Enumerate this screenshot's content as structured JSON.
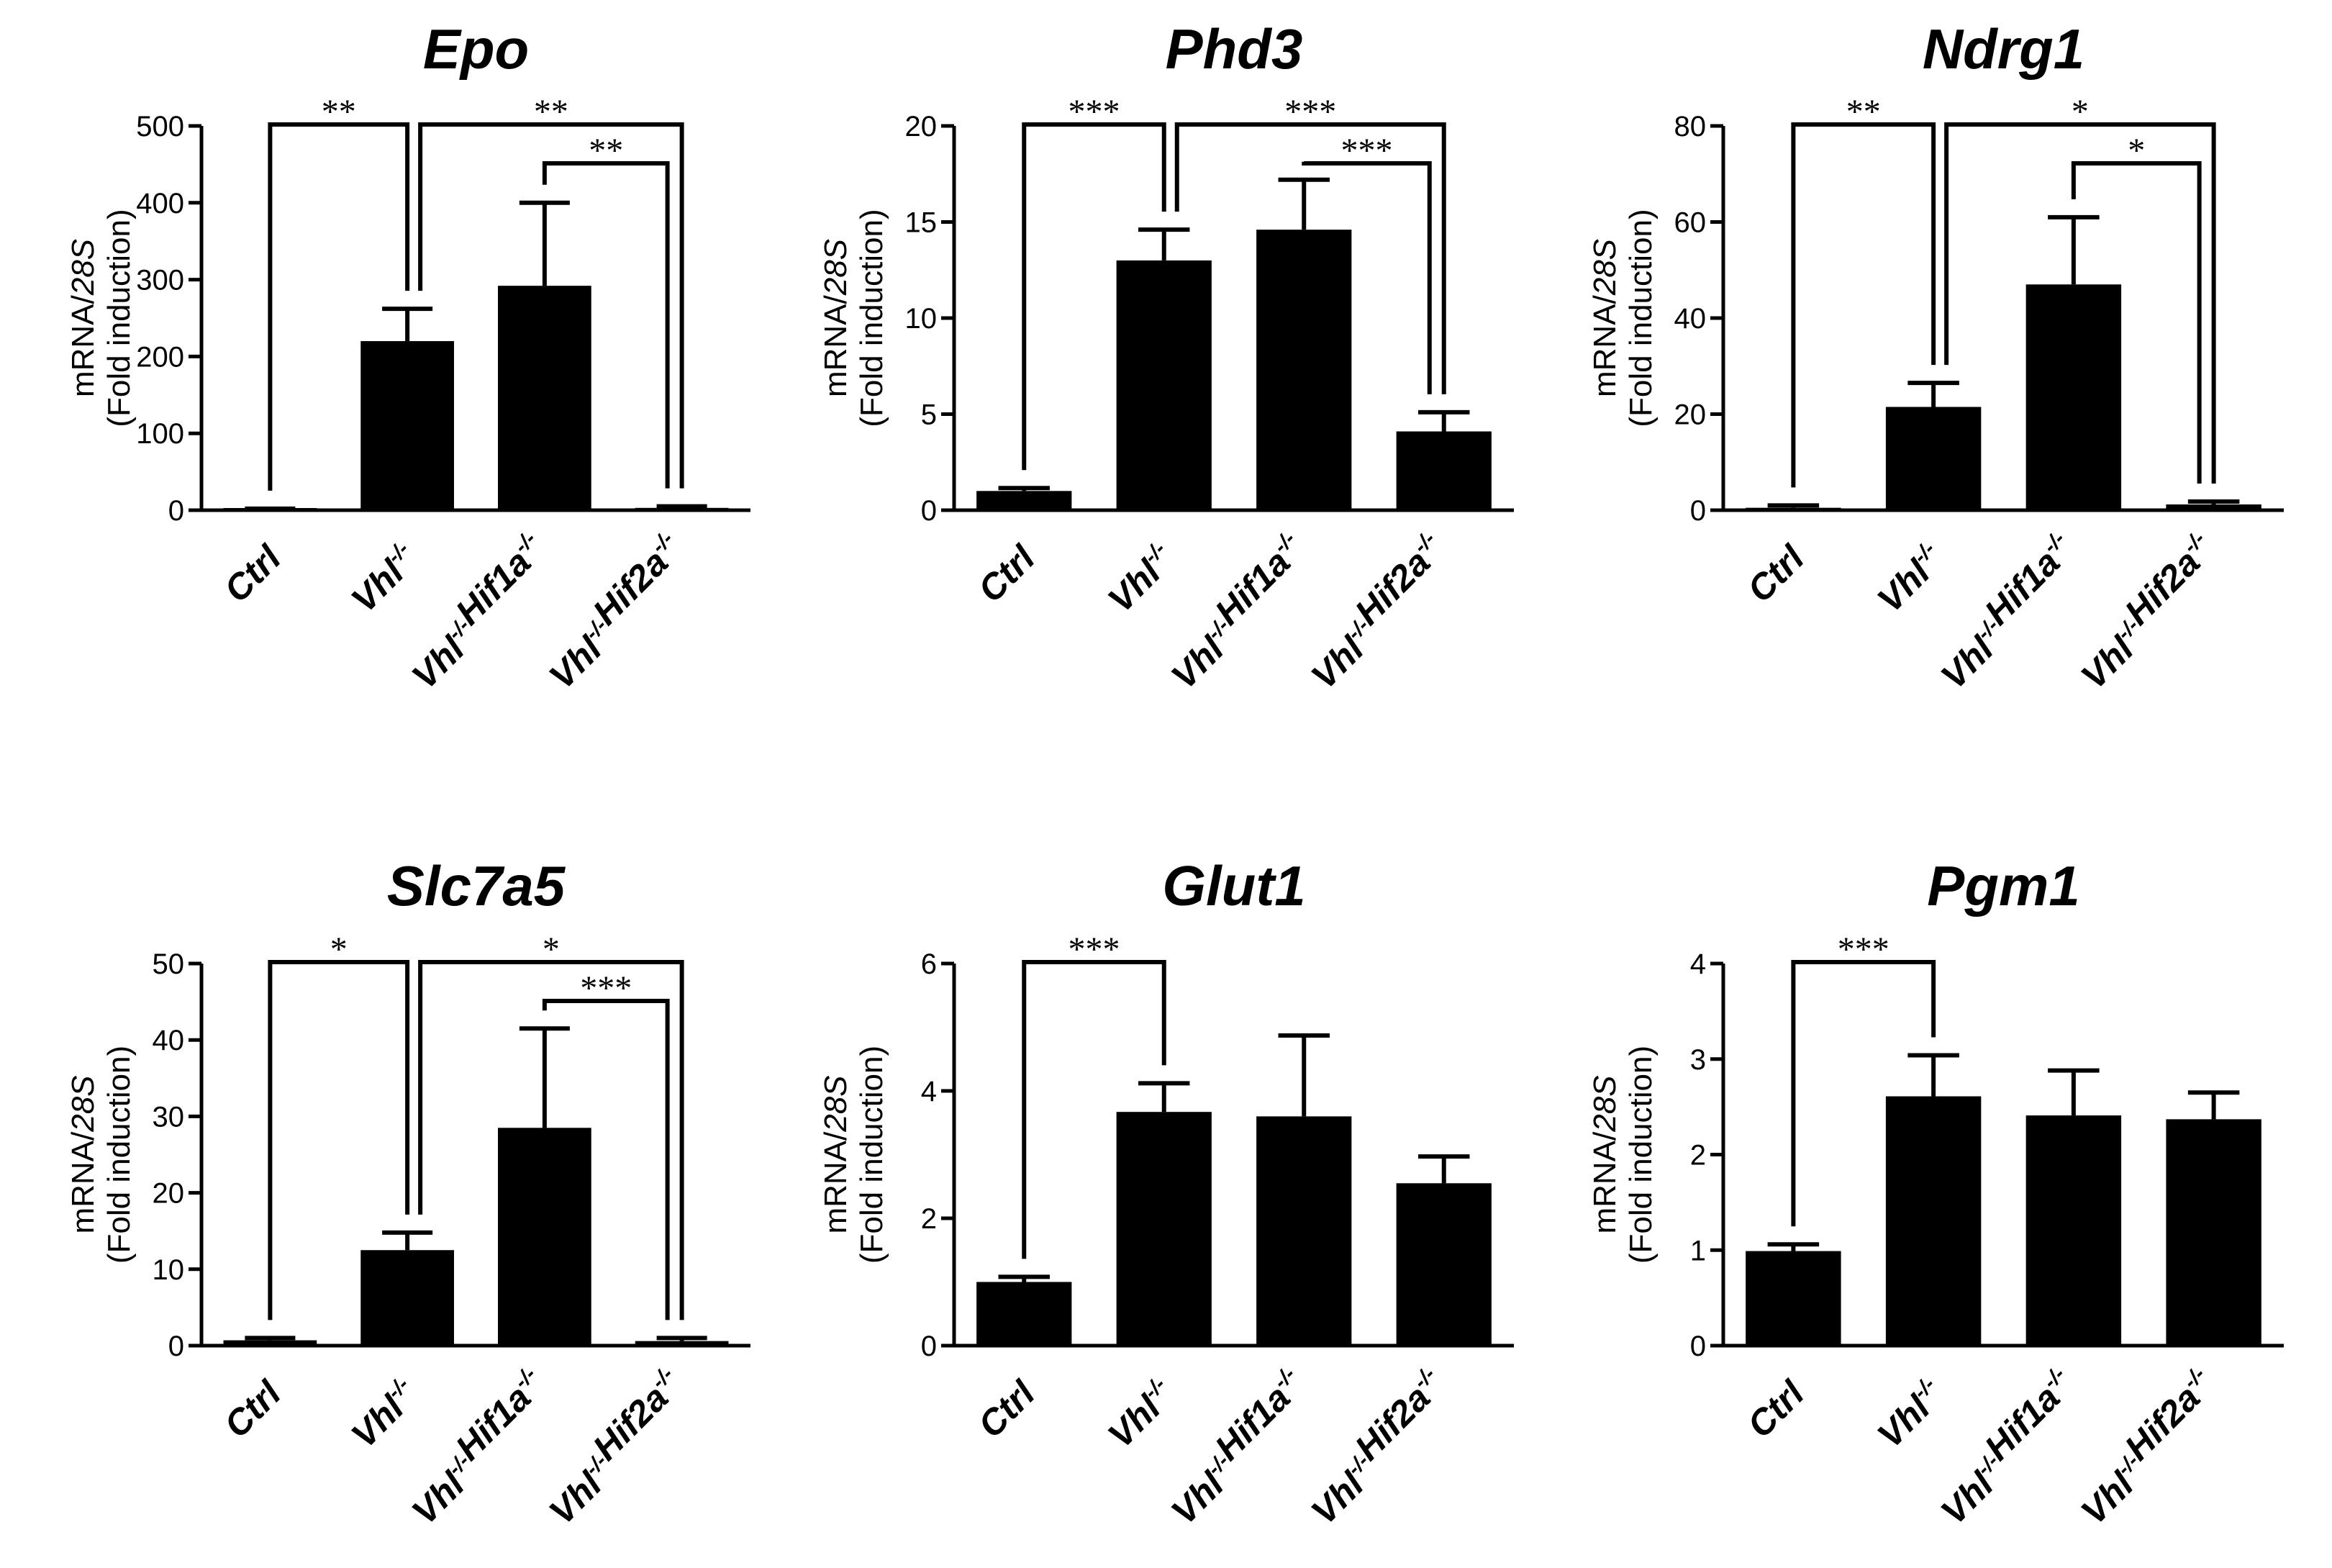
{
  "figure": {
    "panels": 6,
    "layout": "2 rows x 3 columns"
  },
  "colors": {
    "bar": "#000000",
    "axis": "#000000",
    "background": "#ffffff"
  },
  "chart_data": [
    {
      "type": "bar",
      "title": "Epo",
      "ylabel": "mRNA/28S",
      "ylabel_parts": [
        "mRNA/",
        "28S"
      ],
      "ylabel2": "(Fold induction)",
      "ylim": [
        0,
        500
      ],
      "yticks": [
        "0",
        "100",
        "200",
        "300",
        "400",
        "500"
      ],
      "categories": [
        {
          "main": "Ctrl",
          "parts": [
            [
              "Ctrl",
              ""
            ]
          ]
        },
        {
          "main": "Vhl-/-",
          "parts": [
            [
              "Vhl",
              "-/-"
            ]
          ]
        },
        {
          "main": "Vhl-/-Hif1a-/-",
          "parts": [
            [
              "Vhl",
              "-/-"
            ],
            [
              "Hif1a",
              "-/-"
            ]
          ]
        },
        {
          "main": "Vhl-/-Hif2a-/-",
          "parts": [
            [
              "Vhl",
              "-/-"
            ],
            [
              "Hif2a",
              "-/-"
            ]
          ]
        }
      ],
      "values": [
        1,
        220,
        292,
        3
      ],
      "errors": [
        1,
        42,
        108,
        2
      ],
      "significance": [
        {
          "from": 0,
          "to": 1,
          "label": "**",
          "level": 0
        },
        {
          "from": 1,
          "to": 3,
          "label": "**",
          "level": 0
        },
        {
          "from": 2,
          "to": 3,
          "label": "**",
          "level": 1
        }
      ]
    },
    {
      "type": "bar",
      "title": "Phd3",
      "ylabel": "mRNA/28S",
      "ylabel_parts": [
        "mRNA/",
        "28S"
      ],
      "ylabel2": "(Fold induction)",
      "ylim": [
        0,
        20
      ],
      "yticks": [
        "0",
        "5",
        "10",
        "15",
        "20"
      ],
      "categories": [
        {
          "main": "Ctrl",
          "parts": [
            [
              "Ctrl",
              ""
            ]
          ]
        },
        {
          "main": "Vhl-/-",
          "parts": [
            [
              "Vhl",
              "-/-"
            ]
          ]
        },
        {
          "main": "Vhl-/-Hif1a-/-",
          "parts": [
            [
              "Vhl",
              "-/-"
            ],
            [
              "Hif1a",
              "-/-"
            ]
          ]
        },
        {
          "main": "Vhl-/-Hif2a-/-",
          "parts": [
            [
              "Vhl",
              "-/-"
            ],
            [
              "Hif2a",
              "-/-"
            ]
          ]
        }
      ],
      "values": [
        1.0,
        13.0,
        14.6,
        4.1
      ],
      "errors": [
        0.15,
        1.6,
        2.6,
        1.0
      ],
      "significance": [
        {
          "from": 0,
          "to": 1,
          "label": "***",
          "level": 0
        },
        {
          "from": 1,
          "to": 3,
          "label": "***",
          "level": 0
        },
        {
          "from": 2,
          "to": 3,
          "label": "***",
          "level": 1
        }
      ]
    },
    {
      "type": "bar",
      "title": "Ndrg1",
      "ylabel": "mRNA/28S",
      "ylabel_parts": [
        "mRNA/",
        "28S"
      ],
      "ylabel2": "(Fold induction)",
      "ylim": [
        0,
        80
      ],
      "yticks": [
        "0",
        "20",
        "40",
        "60",
        "80"
      ],
      "categories": [
        {
          "main": "Ctrl",
          "parts": [
            [
              "Ctrl",
              ""
            ]
          ]
        },
        {
          "main": "Vhl-/-",
          "parts": [
            [
              "Vhl",
              "-/-"
            ]
          ]
        },
        {
          "main": "Vhl-/-Hif1a-/-",
          "parts": [
            [
              "Vhl",
              "-/-"
            ],
            [
              "Hif1a",
              "-/-"
            ]
          ]
        },
        {
          "main": "Vhl-/-Hif2a-/-",
          "parts": [
            [
              "Vhl",
              "-/-"
            ],
            [
              "Hif2a",
              "-/-"
            ]
          ]
        }
      ],
      "values": [
        0.5,
        21.5,
        47,
        1.2
      ],
      "errors": [
        0.5,
        5,
        14,
        0.6
      ],
      "significance": [
        {
          "from": 0,
          "to": 1,
          "label": "**",
          "level": 0
        },
        {
          "from": 1,
          "to": 3,
          "label": "*",
          "level": 0
        },
        {
          "from": 2,
          "to": 3,
          "label": "*",
          "level": 1
        }
      ]
    },
    {
      "type": "bar",
      "title": "Slc7a5",
      "ylabel": "mRNA/28S",
      "ylabel_parts": [
        "mRNA/",
        "28S"
      ],
      "ylabel2": "(Fold induction)",
      "ylim": [
        0,
        50
      ],
      "yticks": [
        "0",
        "10",
        "20",
        "30",
        "40",
        "50"
      ],
      "categories": [
        {
          "main": "Ctrl",
          "parts": [
            [
              "Ctrl",
              ""
            ]
          ]
        },
        {
          "main": "Vhl-/-",
          "parts": [
            [
              "Vhl",
              "-/-"
            ]
          ]
        },
        {
          "main": "Vhl-/-Hif1a-/-",
          "parts": [
            [
              "Vhl",
              "-/-"
            ],
            [
              "Hif1a",
              "-/-"
            ]
          ]
        },
        {
          "main": "Vhl-/-Hif2a-/-",
          "parts": [
            [
              "Vhl",
              "-/-"
            ],
            [
              "Hif2a",
              "-/-"
            ]
          ]
        }
      ],
      "values": [
        0.7,
        12.5,
        28.5,
        0.6
      ],
      "errors": [
        0.3,
        2.3,
        13,
        0.4
      ],
      "significance": [
        {
          "from": 0,
          "to": 1,
          "label": "*",
          "level": 0
        },
        {
          "from": 1,
          "to": 3,
          "label": "*",
          "level": 0
        },
        {
          "from": 2,
          "to": 3,
          "label": "***",
          "level": 1
        }
      ]
    },
    {
      "type": "bar",
      "title": "Glut1",
      "ylabel": "mRNA/28S",
      "ylabel_parts": [
        "mRNA/",
        "28S"
      ],
      "ylabel2": "(Fold induction)",
      "ylim": [
        0,
        6
      ],
      "yticks": [
        "0",
        "2",
        "4",
        "6"
      ],
      "categories": [
        {
          "main": "Ctrl",
          "parts": [
            [
              "Ctrl",
              ""
            ]
          ]
        },
        {
          "main": "Vhl-/-",
          "parts": [
            [
              "Vhl",
              "-/-"
            ]
          ]
        },
        {
          "main": "Vhl-/-Hif1a-/-",
          "parts": [
            [
              "Vhl",
              "-/-"
            ],
            [
              "Hif1a",
              "-/-"
            ]
          ]
        },
        {
          "main": "Vhl-/-Hif2a-/-",
          "parts": [
            [
              "Vhl",
              "-/-"
            ],
            [
              "Hif2a",
              "-/-"
            ]
          ]
        }
      ],
      "values": [
        1.0,
        3.67,
        3.6,
        2.55
      ],
      "errors": [
        0.08,
        0.45,
        1.27,
        0.42
      ],
      "significance": [
        {
          "from": 0,
          "to": 1,
          "label": "***",
          "level": 0
        }
      ]
    },
    {
      "type": "bar",
      "title": "Pgm1",
      "ylabel": "mRNA/28S",
      "ylabel_parts": [
        "mRNA/",
        "28S"
      ],
      "ylabel2": "(Fold induction)",
      "ylim": [
        0,
        4
      ],
      "yticks": [
        "0",
        "1",
        "2",
        "3",
        "4"
      ],
      "categories": [
        {
          "main": "Ctrl",
          "parts": [
            [
              "Ctrl",
              ""
            ]
          ]
        },
        {
          "main": "Vhl-/-",
          "parts": [
            [
              "Vhl",
              "-/-"
            ]
          ]
        },
        {
          "main": "Vhl-/-Hif1a-/-",
          "parts": [
            [
              "Vhl",
              "-/-"
            ],
            [
              "Hif1a",
              "-/-"
            ]
          ]
        },
        {
          "main": "Vhl-/-Hif2a-/-",
          "parts": [
            [
              "Vhl",
              "-/-"
            ],
            [
              "Hif2a",
              "-/-"
            ]
          ]
        }
      ],
      "values": [
        0.99,
        2.61,
        2.41,
        2.37
      ],
      "errors": [
        0.07,
        0.43,
        0.47,
        0.28
      ],
      "significance": [
        {
          "from": 0,
          "to": 1,
          "label": "***",
          "level": 0
        }
      ]
    }
  ]
}
